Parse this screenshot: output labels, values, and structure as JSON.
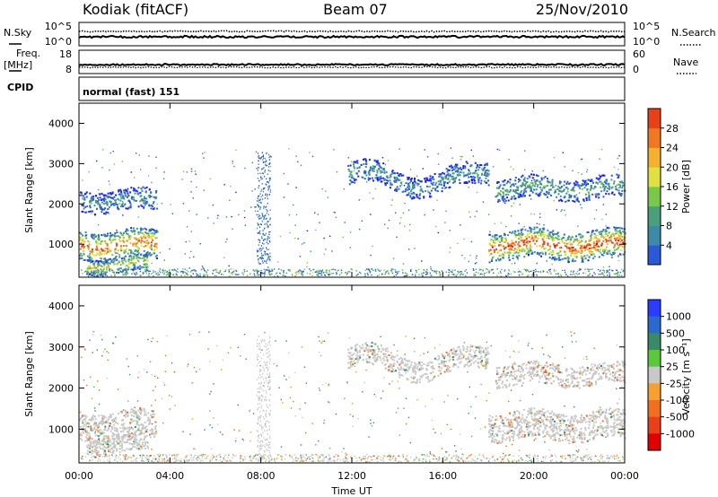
{
  "header": {
    "station": "Kodiak (fitACF)",
    "beam": "Beam 07",
    "date": "25/Nov/2010"
  },
  "sky_panel": {
    "left_label": "N.Sky",
    "right_label": "N.Search",
    "left_ticks": [
      "10^5",
      "10^0"
    ],
    "right_ticks": [
      "10^5",
      "10^0"
    ]
  },
  "freq_panel": {
    "left_label_1": "Freq.",
    "left_label_2": "[MHz]",
    "right_label": "Nave",
    "left_ticks": [
      "18",
      "8"
    ],
    "right_ticks": [
      "60",
      "0"
    ]
  },
  "cpid_panel": {
    "label": "CPID",
    "value": "normal (fast) 151"
  },
  "chart_data": [
    {
      "type": "heatmap",
      "quantity": "Power",
      "ylabel": "Slant Range [km]",
      "xlabel": "Time UT",
      "ylim": [
        180,
        4500
      ],
      "yticks": [
        1000,
        2000,
        3000,
        4000
      ],
      "xlim_hours": [
        0,
        24
      ],
      "xticks": [
        "00:00",
        "04:00",
        "08:00",
        "12:00",
        "16:00",
        "20:00",
        "00:00"
      ],
      "colorbar": {
        "label": "Power [dB]",
        "range": [
          0,
          32
        ],
        "ticks": [
          "4",
          "8",
          "12",
          "16",
          "20",
          "24",
          "28"
        ]
      },
      "features": [
        {
          "t_start_h": 0.0,
          "t_end_h": 3.4,
          "range_km": 1000,
          "level_db": 26
        },
        {
          "t_start_h": 0.3,
          "t_end_h": 3.0,
          "range_km": 500,
          "level_db": 20
        },
        {
          "t_start_h": 0.0,
          "t_end_h": 3.4,
          "range_km": 2100,
          "level_db": 10
        },
        {
          "t_start_h": 11.8,
          "t_end_h": 18.0,
          "range_km": 2650,
          "level_db": 10
        },
        {
          "t_start_h": 18.0,
          "t_end_h": 24.0,
          "range_km": 1000,
          "level_db": 28
        },
        {
          "t_start_h": 18.3,
          "t_end_h": 24.0,
          "range_km": 2400,
          "level_db": 12
        }
      ]
    },
    {
      "type": "heatmap",
      "quantity": "Velocity",
      "ylabel": "Slant Range [km]",
      "xlabel": "Time UT",
      "ylim": [
        180,
        4500
      ],
      "yticks": [
        1000,
        2000,
        3000,
        4000
      ],
      "xlim_hours": [
        0,
        24
      ],
      "xticks": [
        "00:00",
        "04:00",
        "08:00",
        "12:00",
        "16:00",
        "20:00",
        "00:00"
      ],
      "colorbar": {
        "label": "Velocity [m s⁻¹]",
        "ticks": [
          "1000",
          "500",
          "100",
          "25",
          "-25",
          "-100",
          "-500",
          "-1000"
        ]
      },
      "features": [
        {
          "t_start_h": 0.0,
          "t_end_h": 3.4,
          "range_km": 1100,
          "velocity": 0
        },
        {
          "t_start_h": 0.3,
          "t_end_h": 3.0,
          "range_km": 650,
          "velocity": 0
        },
        {
          "t_start_h": 11.8,
          "t_end_h": 18.0,
          "range_km": 2650,
          "velocity": 0
        },
        {
          "t_start_h": 18.0,
          "t_end_h": 24.0,
          "range_km": 1100,
          "velocity": 0
        },
        {
          "t_start_h": 18.3,
          "t_end_h": 24.0,
          "range_km": 2350,
          "velocity": -100
        }
      ]
    }
  ]
}
